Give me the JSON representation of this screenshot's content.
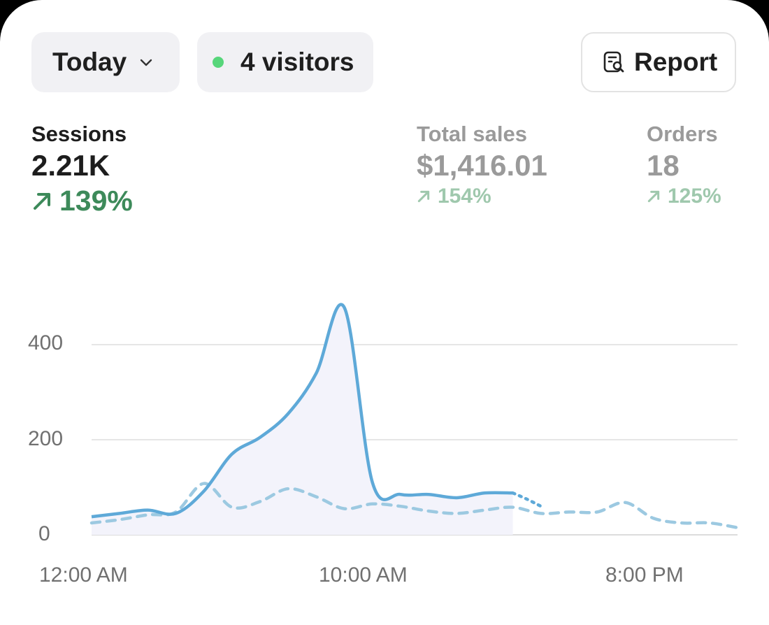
{
  "controls": {
    "date_range": "Today",
    "visitors": "4 visitors",
    "report": "Report"
  },
  "metrics": {
    "sessions": {
      "label": "Sessions",
      "value": "2.21K",
      "delta": "139%"
    },
    "total_sales": {
      "label": "Total sales",
      "value": "$1,416.01",
      "delta": "154%"
    },
    "orders": {
      "label": "Orders",
      "value": "18",
      "delta": "125%"
    }
  },
  "colors": {
    "current": "#5ea9d8",
    "comparison": "#9cc9e1",
    "positive": "#3d8a5a",
    "live_dot": "#57d67a"
  },
  "chart_data": {
    "type": "line",
    "x_tick_labels": [
      "12:00 AM",
      "10:00 AM",
      "8:00 PM"
    ],
    "y_ticks": [
      0,
      200,
      400
    ],
    "ylim": [
      0,
      500
    ],
    "xlim": [
      0,
      23
    ],
    "grid": true,
    "series": [
      {
        "style": "solid",
        "color": "#5ea9d8",
        "x": [
          0,
          1,
          2,
          3,
          4,
          5,
          6,
          7,
          8,
          9,
          10,
          11,
          12,
          13,
          14,
          15,
          15.5,
          16
        ],
        "y": [
          38,
          45,
          52,
          45,
          92,
          170,
          205,
          255,
          340,
          478,
          110,
          85,
          85,
          78,
          88,
          88,
          75,
          60
        ]
      },
      {
        "style": "dashed",
        "color": "#9cc9e1",
        "x": [
          0,
          1,
          2,
          3,
          4,
          5,
          6,
          7,
          8,
          9,
          10,
          11,
          12,
          13,
          14,
          15,
          16,
          17,
          18,
          19,
          20,
          21,
          22,
          23
        ],
        "y": [
          25,
          32,
          42,
          48,
          108,
          58,
          70,
          97,
          80,
          55,
          65,
          60,
          50,
          45,
          52,
          58,
          45,
          48,
          48,
          68,
          35,
          25,
          25,
          15
        ]
      }
    ]
  }
}
